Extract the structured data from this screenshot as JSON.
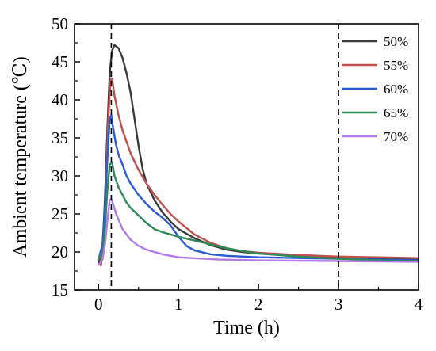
{
  "chart_data": {
    "type": "line",
    "xlabel": "Time (h)",
    "ylabel": "Ambient temperature (℃)",
    "xlim": [
      -0.3,
      4
    ],
    "ylim": [
      15,
      50
    ],
    "x_ticks": [
      0,
      1,
      2,
      3,
      4
    ],
    "y_ticks": [
      15,
      20,
      25,
      30,
      35,
      40,
      45,
      50
    ],
    "x_tick_labels": [
      "0",
      "1",
      "2",
      "3",
      "4"
    ],
    "y_tick_labels": [
      "15",
      "20",
      "25",
      "30",
      "35",
      "40",
      "45",
      "50"
    ],
    "vlines": [
      0.16,
      3.0
    ],
    "legend_position": "top-right",
    "grid": false,
    "series": [
      {
        "name": "50%",
        "color": "#3a3a3a",
        "points": [
          [
            0,
            18.5
          ],
          [
            0.05,
            20.5
          ],
          [
            0.08,
            27
          ],
          [
            0.11,
            36
          ],
          [
            0.14,
            43.5
          ],
          [
            0.17,
            46.5
          ],
          [
            0.2,
            47.2
          ],
          [
            0.25,
            46.8
          ],
          [
            0.3,
            45.5
          ],
          [
            0.35,
            43.5
          ],
          [
            0.4,
            41
          ],
          [
            0.45,
            37.5
          ],
          [
            0.5,
            34
          ],
          [
            0.55,
            31
          ],
          [
            0.6,
            29
          ],
          [
            0.7,
            26.8
          ],
          [
            0.8,
            25.2
          ],
          [
            0.9,
            24
          ],
          [
            1.0,
            23
          ],
          [
            1.2,
            21.8
          ],
          [
            1.4,
            20.9
          ],
          [
            1.6,
            20.3
          ],
          [
            1.8,
            20.0
          ],
          [
            2.0,
            19.8
          ],
          [
            2.5,
            19.5
          ],
          [
            3.0,
            19.3
          ],
          [
            3.5,
            19.2
          ],
          [
            4.0,
            19.1
          ]
        ]
      },
      {
        "name": "55%",
        "color": "#c0504d",
        "points": [
          [
            0.03,
            18.2
          ],
          [
            0.06,
            20.5
          ],
          [
            0.09,
            28
          ],
          [
            0.12,
            37
          ],
          [
            0.15,
            42.5
          ],
          [
            0.17,
            42.8
          ],
          [
            0.2,
            40.5
          ],
          [
            0.25,
            38
          ],
          [
            0.3,
            36
          ],
          [
            0.35,
            34.5
          ],
          [
            0.4,
            33
          ],
          [
            0.5,
            30.8
          ],
          [
            0.6,
            29
          ],
          [
            0.7,
            27.5
          ],
          [
            0.8,
            26.2
          ],
          [
            0.9,
            25
          ],
          [
            1.0,
            24
          ],
          [
            1.2,
            22.3
          ],
          [
            1.4,
            21.2
          ],
          [
            1.6,
            20.5
          ],
          [
            1.8,
            20.1
          ],
          [
            2.0,
            19.9
          ],
          [
            2.5,
            19.6
          ],
          [
            3.0,
            19.4
          ],
          [
            3.5,
            19.3
          ],
          [
            4.0,
            19.2
          ]
        ]
      },
      {
        "name": "60%",
        "color": "#2a5bd7",
        "points": [
          [
            0,
            19
          ],
          [
            0.05,
            21
          ],
          [
            0.08,
            26
          ],
          [
            0.11,
            32
          ],
          [
            0.14,
            37.5
          ],
          [
            0.16,
            38
          ],
          [
            0.18,
            36.5
          ],
          [
            0.22,
            34
          ],
          [
            0.26,
            32.5
          ],
          [
            0.3,
            31.5
          ],
          [
            0.35,
            30
          ],
          [
            0.4,
            29
          ],
          [
            0.5,
            27.5
          ],
          [
            0.6,
            26.3
          ],
          [
            0.7,
            25.3
          ],
          [
            0.8,
            24.5
          ],
          [
            0.9,
            23.5
          ],
          [
            1.0,
            22
          ],
          [
            1.1,
            20.8
          ],
          [
            1.2,
            20.2
          ],
          [
            1.4,
            19.7
          ],
          [
            1.6,
            19.5
          ],
          [
            2.0,
            19.3
          ],
          [
            2.5,
            19.2
          ],
          [
            3.0,
            19.1
          ],
          [
            3.5,
            19.0
          ],
          [
            4.0,
            18.9
          ]
        ]
      },
      {
        "name": "65%",
        "color": "#2e8b57",
        "points": [
          [
            0,
            19
          ],
          [
            0.05,
            20
          ],
          [
            0.08,
            23
          ],
          [
            0.11,
            28
          ],
          [
            0.14,
            31.5
          ],
          [
            0.17,
            31.8
          ],
          [
            0.2,
            30
          ],
          [
            0.25,
            28.5
          ],
          [
            0.3,
            27.5
          ],
          [
            0.35,
            26.5
          ],
          [
            0.4,
            25.8
          ],
          [
            0.5,
            24.8
          ],
          [
            0.6,
            23.8
          ],
          [
            0.7,
            23
          ],
          [
            0.8,
            22.6
          ],
          [
            1.0,
            22
          ],
          [
            1.2,
            21.5
          ],
          [
            1.4,
            21
          ],
          [
            1.6,
            20.5
          ],
          [
            1.8,
            20.1
          ],
          [
            2.0,
            19.8
          ],
          [
            2.5,
            19.4
          ],
          [
            3.0,
            19.1
          ],
          [
            3.5,
            18.9
          ],
          [
            4.0,
            18.8
          ]
        ]
      },
      {
        "name": "70%",
        "color": "#b07ae8",
        "points": [
          [
            0,
            18.3
          ],
          [
            0.05,
            19
          ],
          [
            0.08,
            21
          ],
          [
            0.11,
            24
          ],
          [
            0.14,
            26.8
          ],
          [
            0.16,
            27
          ],
          [
            0.19,
            26
          ],
          [
            0.22,
            25
          ],
          [
            0.26,
            24
          ],
          [
            0.3,
            23
          ],
          [
            0.35,
            22.3
          ],
          [
            0.4,
            21.6
          ],
          [
            0.5,
            20.8
          ],
          [
            0.6,
            20.3
          ],
          [
            0.7,
            20
          ],
          [
            0.8,
            19.7
          ],
          [
            1.0,
            19.3
          ],
          [
            1.5,
            19.0
          ],
          [
            2.0,
            18.9
          ],
          [
            3.0,
            18.8
          ],
          [
            4.0,
            18.7
          ]
        ]
      }
    ]
  }
}
